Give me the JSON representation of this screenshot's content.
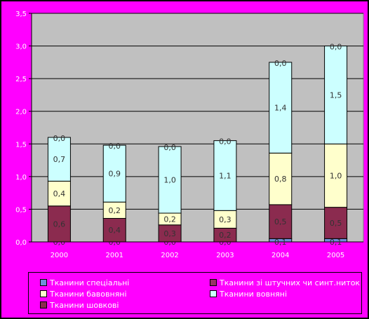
{
  "chart_data": {
    "type": "bar",
    "stacked": true,
    "categories": [
      "2000",
      "2001",
      "2002",
      "2003",
      "2004",
      "2005"
    ],
    "ylim": [
      0,
      3.5
    ],
    "yticks": [
      "0,0",
      "0,5",
      "1,0",
      "1,5",
      "2,0",
      "2,5",
      "3,0",
      "3,5"
    ],
    "ytick_values": [
      0,
      0.5,
      1.0,
      1.5,
      2.0,
      2.5,
      3.0,
      3.5
    ],
    "grid": true,
    "legend_position": "bottom",
    "series": [
      {
        "name": "Тканини спеціальні",
        "color": "#6f8fd8",
        "values": [
          0.0,
          0.0,
          0.0,
          0.0,
          0.05,
          0.05
        ],
        "labels": [
          "0,0",
          "0,0",
          "0,0",
          "0,0",
          "0,1",
          "0,1"
        ]
      },
      {
        "name": "Тканини шовкові",
        "color": "#8b2b4f",
        "values": [
          0.55,
          0.36,
          0.26,
          0.21,
          0.52,
          0.48
        ],
        "labels": [
          "0,6",
          "0,4",
          "0,3",
          "0,2",
          "0,5",
          "0,5"
        ]
      },
      {
        "name": "Тканини бавовняні",
        "color": "#ffffcc",
        "values": [
          0.38,
          0.25,
          0.18,
          0.27,
          0.79,
          0.97
        ],
        "labels": [
          "0,4",
          "0,2",
          "0,2",
          "0,3",
          "0,8",
          "1,0"
        ]
      },
      {
        "name": "Тканини вовняні",
        "color": "#ccffff",
        "values": [
          0.67,
          0.87,
          1.02,
          1.07,
          1.39,
          1.5
        ],
        "labels": [
          "0,7",
          "0,9",
          "1,0",
          "1,1",
          "1,4",
          "1,5"
        ]
      },
      {
        "name": "Тканини зі штучних чи синт.ниток",
        "color": "#993366",
        "values": [
          0.0,
          0.0,
          0.0,
          0.0,
          0.0,
          0.0
        ],
        "labels": [
          "0,0",
          "0,0",
          "0,0",
          "0,0",
          "0,0",
          "0,0"
        ]
      }
    ],
    "legend": {
      "spec": "Тканини спеціальні",
      "synth": "Тканини зі штучних чи синт.ниток",
      "cotton": "Тканини бавовняні",
      "wool": "Тканини вовняні",
      "silk": "Тканини шовкові"
    }
  },
  "colors": {
    "frame": "#ff00ff",
    "plot_area": "#c0c0c0",
    "gridline": "#000000",
    "bar_outline": "#000000",
    "text": "#ffffff"
  }
}
